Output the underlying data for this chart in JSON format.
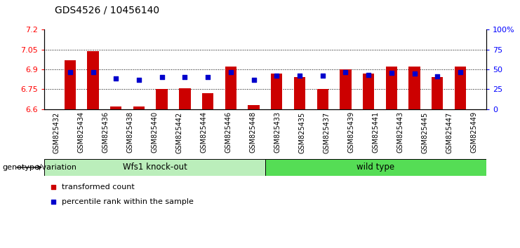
{
  "title": "GDS4526 / 10456140",
  "samples": [
    "GSM825432",
    "GSM825434",
    "GSM825436",
    "GSM825438",
    "GSM825440",
    "GSM825442",
    "GSM825444",
    "GSM825446",
    "GSM825448",
    "GSM825433",
    "GSM825435",
    "GSM825437",
    "GSM825439",
    "GSM825441",
    "GSM825443",
    "GSM825445",
    "GSM825447",
    "GSM825449"
  ],
  "groups": [
    "Wfs1 knock-out",
    "Wfs1 knock-out",
    "Wfs1 knock-out",
    "Wfs1 knock-out",
    "Wfs1 knock-out",
    "Wfs1 knock-out",
    "Wfs1 knock-out",
    "Wfs1 knock-out",
    "Wfs1 knock-out",
    "wild type",
    "wild type",
    "wild type",
    "wild type",
    "wild type",
    "wild type",
    "wild type",
    "wild type",
    "wild type"
  ],
  "bar_values": [
    6.97,
    7.04,
    6.62,
    6.62,
    6.75,
    6.76,
    6.72,
    6.92,
    6.63,
    6.87,
    6.84,
    6.75,
    6.9,
    6.87,
    6.92,
    6.92,
    6.84,
    6.92
  ],
  "percentile_values": [
    47,
    47,
    39,
    37,
    40,
    40,
    40,
    47,
    37,
    42,
    42,
    42,
    47,
    43,
    46,
    45,
    41,
    47
  ],
  "bar_color": "#cc0000",
  "percentile_color": "#0000cc",
  "ylim_left": [
    6.6,
    7.2
  ],
  "ylim_right": [
    0,
    100
  ],
  "yticks_left": [
    6.6,
    6.75,
    6.9,
    7.05,
    7.2
  ],
  "yticks_right": [
    0,
    25,
    50,
    75,
    100
  ],
  "ytick_labels_left": [
    "6.6",
    "6.75",
    "6.9",
    "7.05",
    "7.2"
  ],
  "ytick_labels_right": [
    "0",
    "25",
    "50",
    "75",
    "100%"
  ],
  "group1_label": "Wfs1 knock-out",
  "group2_label": "wild type",
  "group1_color": "#bbeebb",
  "group2_color": "#55dd55",
  "genotype_label": "genotype/variation",
  "legend_bar_label": "transformed count",
  "legend_pct_label": "percentile rank within the sample",
  "n_group1": 9,
  "n_group2": 9,
  "bar_base": 6.6
}
